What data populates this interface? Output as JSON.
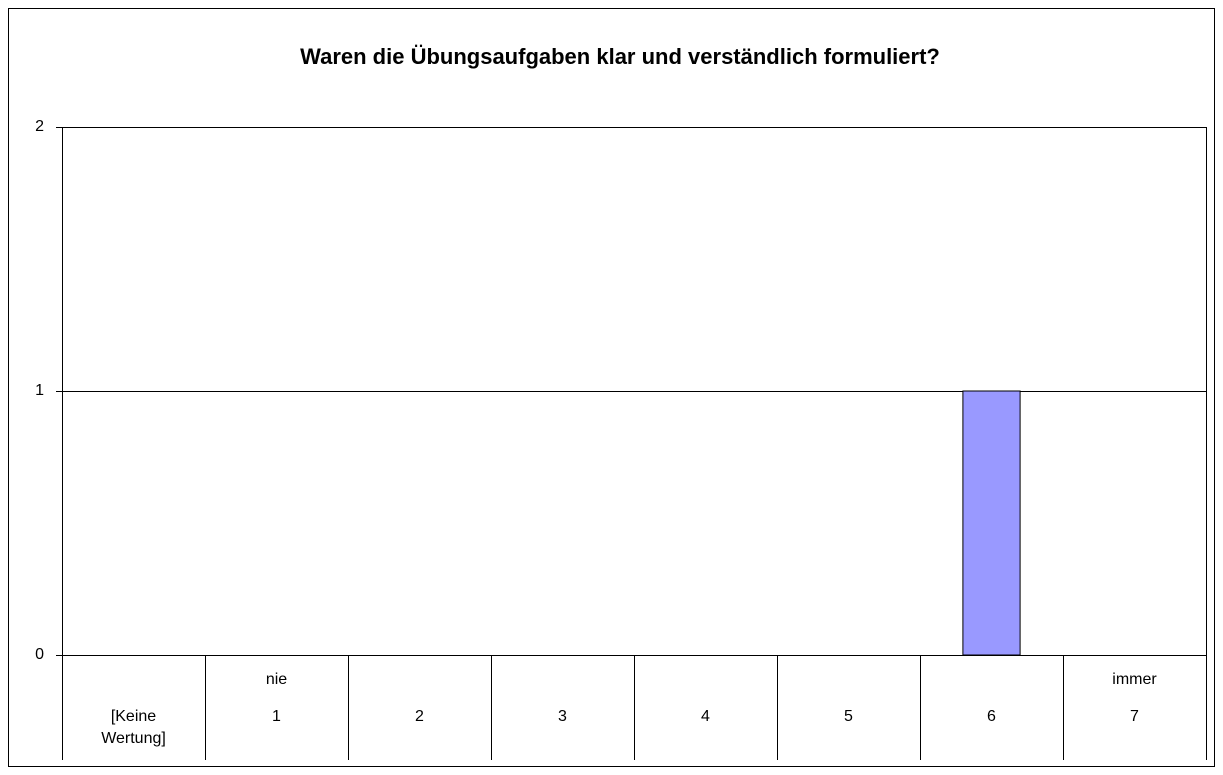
{
  "chart_data": {
    "type": "bar",
    "title": "Waren die Übungsaufgaben klar und verständlich formuliert?",
    "categories": [
      [
        "[Keine Wertung]"
      ],
      [
        "nie",
        "1"
      ],
      [
        "2"
      ],
      [
        "3"
      ],
      [
        "4"
      ],
      [
        "5"
      ],
      [
        "6"
      ],
      [
        "immer",
        "7"
      ]
    ],
    "values": [
      0,
      0,
      0,
      0,
      0,
      0,
      1,
      0
    ],
    "color": "#9999ff",
    "ylim": [
      0,
      2
    ],
    "yticks": [
      0,
      1,
      2
    ],
    "grid": true
  }
}
